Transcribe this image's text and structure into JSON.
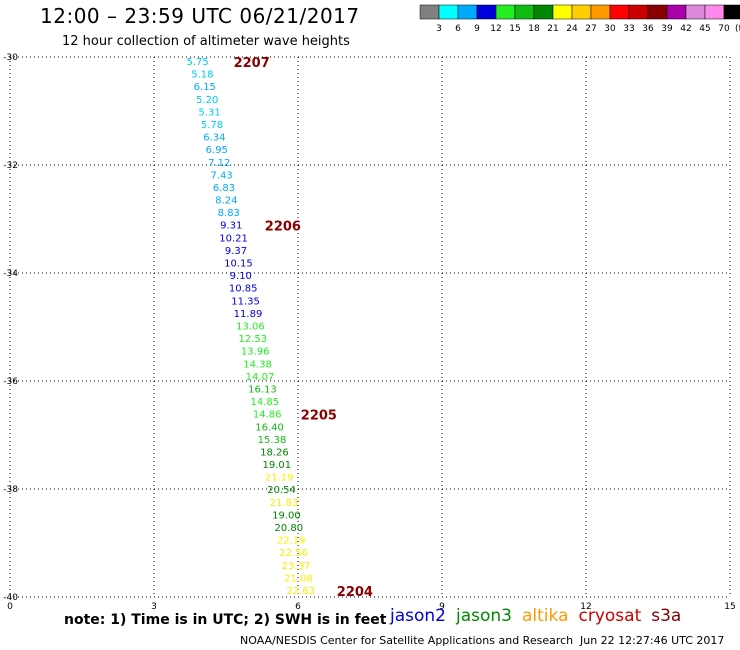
{
  "header": {
    "title": "12:00 – 23:59 UTC 06/21/2017",
    "subtitle": "12 hour collection of altimeter wave heights"
  },
  "colorbar": {
    "labels": [
      "3",
      "6",
      "9",
      "12",
      "15",
      "18",
      "21",
      "24",
      "27",
      "30",
      "33",
      "36",
      "39",
      "42",
      "45",
      "70"
    ],
    "unit": "(ft)",
    "colors": [
      "#808080",
      "#00ffff",
      "#00aaff",
      "#0000dd",
      "#22ee22",
      "#11bb11",
      "#008800",
      "#ffff00",
      "#ffcc00",
      "#ff9900",
      "#ff0000",
      "#cc0000",
      "#880000",
      "#aa00aa",
      "#dd88dd",
      "#ff88ee",
      "#000000"
    ]
  },
  "chart_data": {
    "type": "scatter",
    "xlim": [
      0,
      15
    ],
    "ylim": [
      -40,
      -30
    ],
    "x_ticks": [
      "0",
      "3",
      "6",
      "9",
      "12",
      "15"
    ],
    "y_ticks": [
      "-30",
      "-32",
      "-34",
      "-36",
      "-38",
      "-40"
    ],
    "grid": true,
    "points": [
      {
        "lon": 3.7,
        "lat": -30.13,
        "label": "5.75"
      },
      {
        "lon": 3.8,
        "lat": -30.41,
        "label": "5.18"
      },
      {
        "lon": 3.85,
        "lat": -30.69,
        "label": "6.15"
      },
      {
        "lon": 3.9,
        "lat": -30.97,
        "label": "5.20"
      },
      {
        "lon": 3.95,
        "lat": -31.25,
        "label": "5.31"
      },
      {
        "lon": 4.0,
        "lat": -31.53,
        "label": "5.78"
      },
      {
        "lon": 4.05,
        "lat": -31.81,
        "label": "6.34"
      },
      {
        "lon": 4.1,
        "lat": -32.09,
        "label": "6.95"
      },
      {
        "lon": 4.15,
        "lat": -32.37,
        "label": "7.12"
      },
      {
        "lon": 4.2,
        "lat": -32.65,
        "label": "7.43"
      },
      {
        "lon": 4.25,
        "lat": -32.93,
        "label": "6.83"
      },
      {
        "lon": 4.3,
        "lat": -33.21,
        "label": "8.24"
      },
      {
        "lon": 4.35,
        "lat": -33.49,
        "label": "8.83"
      },
      {
        "lon": 4.4,
        "lat": -33.77,
        "label": "9.31"
      },
      {
        "lon": 4.45,
        "lat": -34.05,
        "label": "10.21"
      },
      {
        "lon": 4.5,
        "lat": -34.33,
        "label": "9.37"
      },
      {
        "lon": 4.55,
        "lat": -34.61,
        "label": "10.15"
      },
      {
        "lon": 4.6,
        "lat": -34.89,
        "label": "9.10"
      },
      {
        "lon": 4.65,
        "lat": -35.17,
        "label": "10.85"
      },
      {
        "lon": 4.7,
        "lat": -35.45,
        "label": "11.35"
      },
      {
        "lon": 4.75,
        "lat": -35.73,
        "label": "11.89"
      },
      {
        "lon": 4.8,
        "lat": -36.01,
        "label": "13.06"
      },
      {
        "lon": 4.85,
        "lat": -36.29,
        "label": "12.53"
      },
      {
        "lon": 4.9,
        "lat": -36.57,
        "label": "13.96"
      },
      {
        "lon": 4.95,
        "lat": -36.85,
        "label": "14.38"
      },
      {
        "lon": 5.0,
        "lat": -37.13,
        "label": "14.07"
      },
      {
        "lon": 5.05,
        "lat": -37.41,
        "label": "16.13"
      },
      {
        "lon": 5.1,
        "lat": -37.69,
        "label": "14.85"
      },
      {
        "lon": 5.15,
        "lat": -37.97,
        "label": "14.86"
      },
      {
        "lon": 5.2,
        "lat": -38.25,
        "label": "16.40"
      },
      {
        "lon": 5.25,
        "lat": -38.53,
        "label": "15.38"
      },
      {
        "lon": 5.3,
        "lat": -38.81,
        "label": "18.26"
      },
      {
        "lon": 5.35,
        "lat": -39.09,
        "label": "19.01"
      },
      {
        "lon": 5.4,
        "lat": -39.37,
        "label": "21.19"
      },
      {
        "lon": 5.45,
        "lat": -39.65,
        "label": "20.54"
      },
      {
        "lon": 5.5,
        "lat": -39.93,
        "label": "21.83"
      },
      {
        "lon": 5.55,
        "lat": -40.21,
        "label": "19.00"
      },
      {
        "lon": 5.6,
        "lat": -40.49,
        "label": "20.80"
      },
      {
        "lon": 5.65,
        "lat": -40.77,
        "label": "22.19"
      },
      {
        "lon": 5.7,
        "lat": -41.05,
        "label": "22.56"
      },
      {
        "lon": 5.75,
        "lat": -41.33,
        "label": "23.37"
      },
      {
        "lon": 5.8,
        "lat": -41.61,
        "label": "21.08"
      },
      {
        "lon": 5.85,
        "lat": -41.89,
        "label": "22.63"
      }
    ],
    "time_labels": [
      {
        "text": "2207",
        "lon": 4.2,
        "lat": -30.13
      },
      {
        "text": "2206",
        "lon": 4.85,
        "lat": -33.49
      },
      {
        "text": "2205",
        "lon": 5.6,
        "lat": -37.69
      },
      {
        "text": "2204",
        "lon": 6.35,
        "lat": -41.89
      }
    ]
  },
  "footer": {
    "note": "note:  1) Time is in UTC;  2) SWH is in feet",
    "sources": [
      {
        "name": "jason2",
        "color": "#0000dd"
      },
      {
        "name": "jason3",
        "color": "#008800"
      },
      {
        "name": "altika",
        "color": "#ff9900"
      },
      {
        "name": "cryosat",
        "color": "#cc0000"
      },
      {
        "name": "s3a",
        "color": "#880000"
      }
    ],
    "credit": "NOAA/NESDIS Center for Satellite Applications and Research",
    "timestamp": "Jun 22 12:27:46 UTC 2017"
  }
}
